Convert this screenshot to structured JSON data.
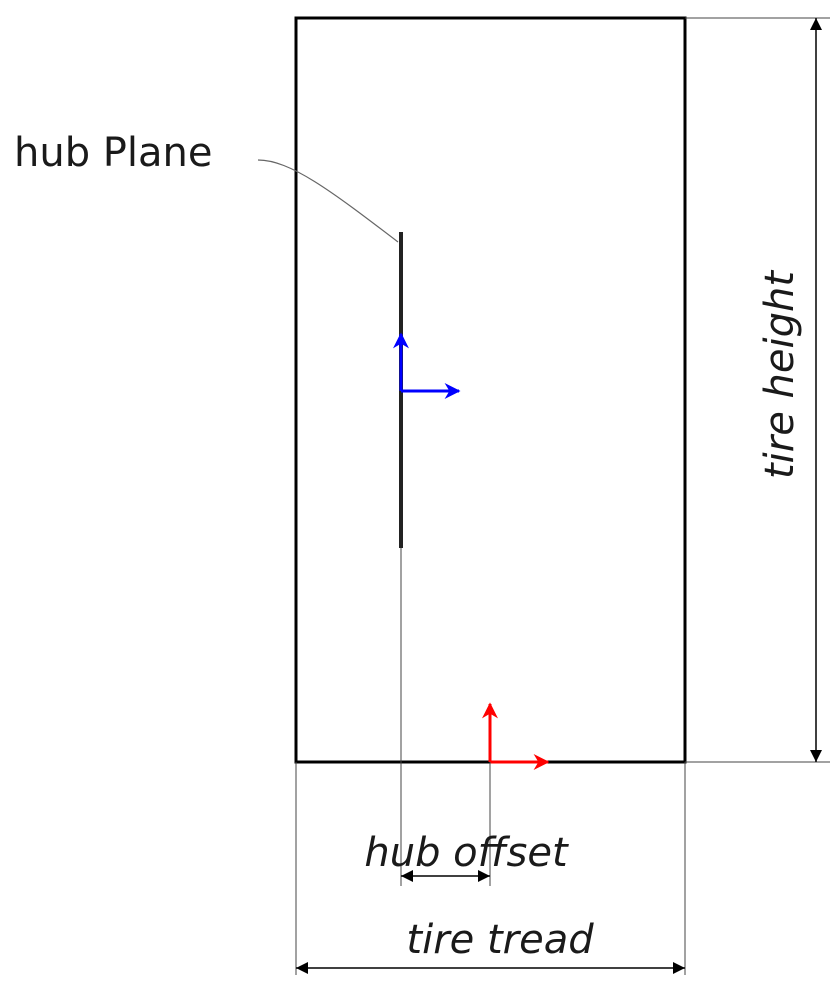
{
  "labels": {
    "hub_plane": "hub Plane",
    "tire_height": "tire height",
    "hub_offset": "hub offset",
    "tire_tread": "tire tread"
  },
  "colors": {
    "outline": "#000000",
    "hub_axes": "#0000ff",
    "tire_axes": "#ff0000",
    "leader": "#666666"
  }
}
